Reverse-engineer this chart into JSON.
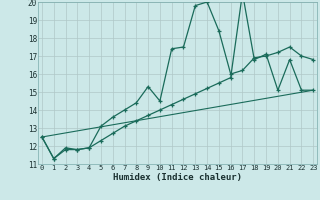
{
  "xlabel": "Humidex (Indice chaleur)",
  "bg_color": "#cce8e8",
  "grid_color": "#b0c8c8",
  "line_color": "#1a6b5a",
  "x_min": 0,
  "x_max": 23,
  "y_min": 11,
  "y_max": 20,
  "line1_x": [
    0,
    1,
    2,
    3,
    4,
    5,
    6,
    7,
    8,
    9,
    10,
    11,
    12,
    13,
    14,
    15,
    16,
    17,
    18,
    19,
    20,
    21,
    22,
    23
  ],
  "line1_y": [
    12.5,
    11.3,
    11.8,
    11.8,
    11.9,
    13.1,
    13.6,
    14.0,
    14.4,
    15.3,
    14.5,
    17.4,
    17.5,
    19.8,
    20.0,
    18.4,
    16.0,
    16.2,
    16.9,
    17.0,
    17.2,
    17.5,
    17.0,
    16.8
  ],
  "line2_x": [
    0,
    1,
    2,
    3,
    4,
    5,
    6,
    7,
    8,
    9,
    10,
    11,
    12,
    13,
    14,
    15,
    16,
    17,
    18,
    19,
    20,
    21,
    22,
    23
  ],
  "line2_y": [
    12.5,
    11.3,
    11.9,
    11.8,
    11.9,
    12.3,
    12.7,
    13.1,
    13.4,
    13.7,
    14.0,
    14.3,
    14.6,
    14.9,
    15.2,
    15.5,
    15.8,
    20.5,
    16.8,
    17.1,
    15.1,
    16.8,
    15.1,
    15.1
  ],
  "line3_x": [
    0,
    23
  ],
  "line3_y": [
    12.5,
    15.1
  ],
  "yticks": [
    11,
    12,
    13,
    14,
    15,
    16,
    17,
    18,
    19,
    20
  ],
  "xticks": [
    0,
    1,
    2,
    3,
    4,
    5,
    6,
    7,
    8,
    9,
    10,
    11,
    12,
    13,
    14,
    15,
    16,
    17,
    18,
    19,
    20,
    21,
    22,
    23
  ]
}
